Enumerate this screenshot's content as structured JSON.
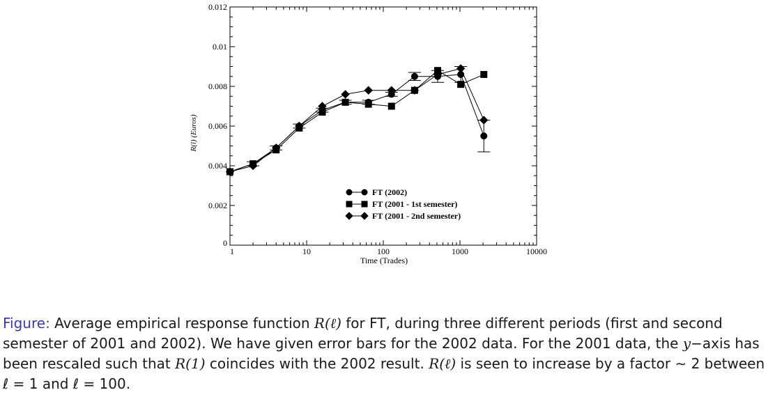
{
  "chart_data": {
    "type": "line",
    "xlabel": "Time (Trades)",
    "ylabel": "R(l) (Euros)",
    "xscale": "log",
    "xlim": [
      1,
      10000
    ],
    "ylim": [
      0,
      0.012
    ],
    "xticks": [
      "1",
      "10",
      "100",
      "1000",
      "10000"
    ],
    "yticks": [
      "0",
      "0.002",
      "0.004",
      "0.006",
      "0.008",
      "0.01",
      "0.012"
    ],
    "legend_position": "lower-center",
    "series": [
      {
        "name": "FT (2002)",
        "marker": "circle",
        "x": [
          1,
          2,
          4,
          8,
          16,
          32,
          64,
          128,
          256,
          512,
          1024,
          2048
        ],
        "y": [
          0.0037,
          0.0041,
          0.0049,
          0.006,
          0.0068,
          0.0072,
          0.0072,
          0.0076,
          0.0085,
          0.0085,
          0.0086,
          0.0055
        ],
        "error": [
          0.0,
          0.0001,
          0.0001,
          0.0001,
          0.0001,
          0.0001,
          0.0001,
          0.0001,
          0.0002,
          0.0003,
          0.0004,
          0.0008
        ]
      },
      {
        "name": "FT (2001 - 1st semester)",
        "marker": "square",
        "x": [
          1,
          2,
          4,
          8,
          16,
          32,
          64,
          128,
          256,
          512,
          1024,
          2048
        ],
        "y": [
          0.0037,
          0.0041,
          0.0048,
          0.0059,
          0.0067,
          0.0072,
          0.0071,
          0.007,
          0.0078,
          0.0088,
          0.0081,
          0.0086
        ]
      },
      {
        "name": "FT (2001 - 2nd semester)",
        "marker": "diamond",
        "x": [
          1,
          2,
          4,
          8,
          16,
          32,
          64,
          128,
          256,
          512,
          1024,
          2048
        ],
        "y": [
          0.0037,
          0.004,
          0.0049,
          0.006,
          0.007,
          0.0076,
          0.0078,
          0.0078,
          0.0078,
          0.0086,
          0.0089,
          0.0063
        ]
      }
    ]
  },
  "caption": {
    "label": "Figure:",
    "part1": " Average empirical response function ",
    "r_symbol": "R(ℓ)",
    "part2": " for FT, during three different periods (first and second semester of 2001 and 2002). We have given error bars for the 2002 data. For the 2001 data, the ",
    "y_var": "y",
    "part3": "−axis has been rescaled such that ",
    "r_one": "R(1)",
    "part4": " coincides with the 2002 result. ",
    "r_symbol2": "R(ℓ)",
    "part5": " is seen to increase by a factor ∼ 2 between ℓ = 1 and ℓ = 100."
  },
  "colors": {
    "axes": "#000000",
    "caption_label": "#3a3ab0"
  }
}
